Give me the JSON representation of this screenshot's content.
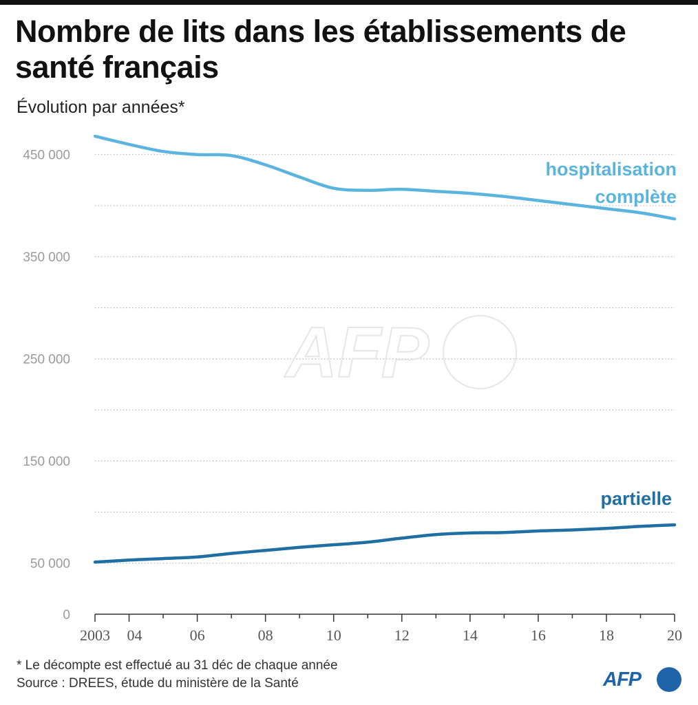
{
  "header": {
    "title": "Nombre de lits dans les établissements de santé français",
    "subtitle": "Évolution par années*"
  },
  "footer": {
    "note": "* Le décompte est effectué au 31 déc de chaque année",
    "source": "Source : DREES, étude du ministère de la Santé",
    "logo": "AFP"
  },
  "watermark": "AFP",
  "colors": {
    "hospitalisation_complete": "#5ab4de",
    "partielle": "#1f6fa3",
    "grid": "#b5b5b5",
    "axis_text": "#9a9a9a"
  },
  "chart_data": {
    "type": "line",
    "title": "Nombre de lits dans les établissements de santé français",
    "subtitle": "Évolution par années*",
    "x": [
      2003,
      2004,
      2005,
      2006,
      2007,
      2008,
      2009,
      2010,
      2011,
      2012,
      2013,
      2014,
      2015,
      2016,
      2017,
      2018,
      2019,
      2020
    ],
    "x_tick_values": [
      2003,
      2004,
      2006,
      2008,
      2010,
      2012,
      2014,
      2016,
      2018,
      2020
    ],
    "x_tick_labels": [
      "2003",
      "04",
      "06",
      "08",
      "10",
      "12",
      "14",
      "16",
      "18",
      "20"
    ],
    "y_tick_values": [
      0,
      50000,
      150000,
      250000,
      350000,
      450000
    ],
    "y_tick_labels": [
      "0",
      "50 000",
      "150 000",
      "250 000",
      "350 000",
      "450 000"
    ],
    "ylim": [
      0,
      470000
    ],
    "grid": "horizontal dotted every 50 000",
    "series": [
      {
        "name": "hospitalisation complète",
        "label_lines": [
          "hospitalisation",
          "complète"
        ],
        "values": [
          468000,
          460000,
          453000,
          450000,
          449000,
          440000,
          428000,
          417000,
          415000,
          416000,
          414000,
          412000,
          409000,
          405000,
          401000,
          397000,
          393000,
          387000
        ]
      },
      {
        "name": "partielle",
        "label_lines": [
          "partielle"
        ],
        "values": [
          51000,
          53000,
          54500,
          56000,
          59500,
          62500,
          65500,
          68000,
          70500,
          74500,
          78000,
          79500,
          80000,
          81500,
          82500,
          84000,
          86000,
          87500
        ]
      }
    ]
  }
}
